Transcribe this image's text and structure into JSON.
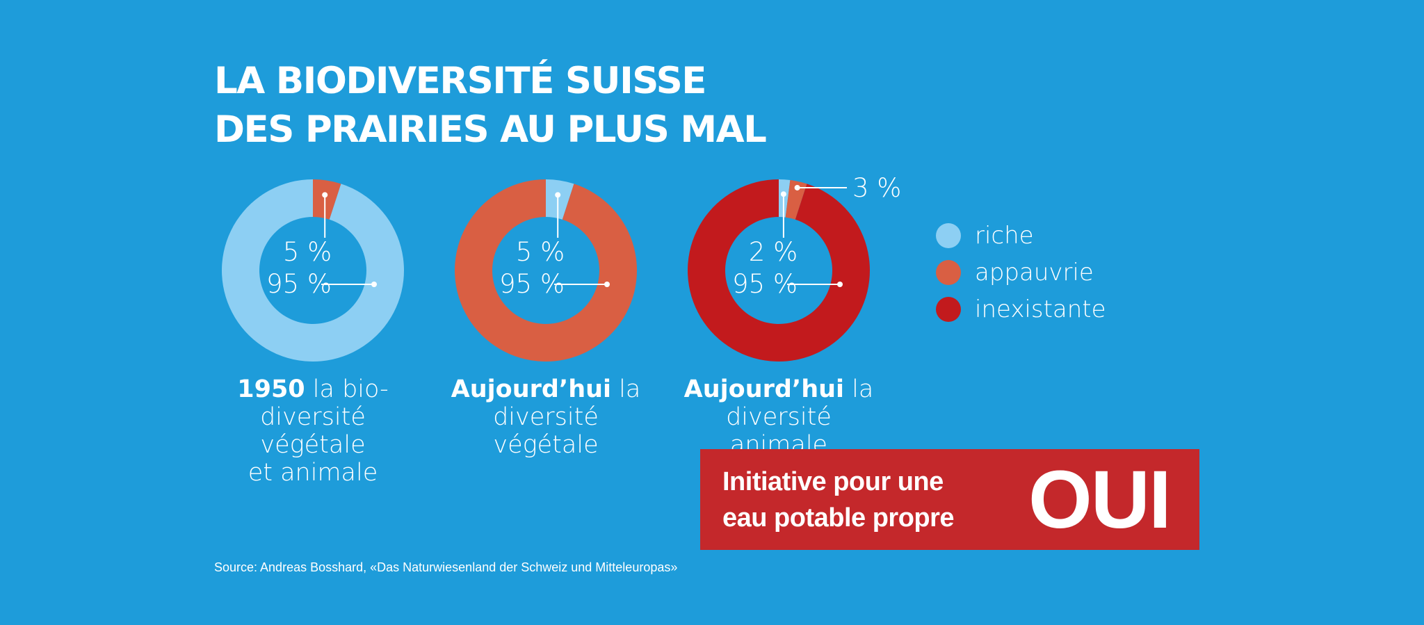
{
  "title": {
    "line1": "LA BIODIVERSITÉ SUISSE",
    "line2": "DES PRAIRIES AU PLUS MAL"
  },
  "colors": {
    "background": "#1e9cda",
    "riche": "#8dcff3",
    "appauvrie": "#d95f43",
    "inexistante": "#c21a1d",
    "cta": "#c4282b"
  },
  "chart_data": {
    "type": "pie",
    "variant": "donut",
    "title": "LA BIODIVERSITÉ SUISSE DES PRAIRIES AU PLUS MAL",
    "legend": [
      "riche",
      "appauvrie",
      "inexistante"
    ],
    "legend_position": "right",
    "charts": [
      {
        "caption_bold": "1950",
        "caption_rest": " la bio-",
        "caption_line2": "diversité végétale",
        "caption_line3": "et animale",
        "slices": [
          {
            "category": "appauvrie",
            "value": 5,
            "label": "5 %"
          },
          {
            "category": "riche",
            "value": 95,
            "label": "95 %"
          }
        ]
      },
      {
        "caption_bold": "Aujourd’hui",
        "caption_rest": " la",
        "caption_line2": "diversité végétale",
        "caption_line3": "",
        "slices": [
          {
            "category": "riche",
            "value": 5,
            "label": "5 %"
          },
          {
            "category": "appauvrie",
            "value": 95,
            "label": "95 %"
          }
        ]
      },
      {
        "caption_bold": "Aujourd’hui",
        "caption_rest": " la",
        "caption_line2": "diversité animale",
        "caption_line3": "",
        "slices": [
          {
            "category": "riche",
            "value": 2,
            "label": "2 %"
          },
          {
            "category": "appauvrie",
            "value": 3,
            "label": "3 %"
          },
          {
            "category": "inexistante",
            "value": 95,
            "label": "95 %"
          }
        ]
      }
    ]
  },
  "cta": {
    "line1": "Initiative pour une",
    "line2": "eau potable propre",
    "vote": "OUI"
  },
  "source": "Source: Andreas Bosshard, «Das Naturwiesenland der Schweiz und Mitteleuropas»"
}
